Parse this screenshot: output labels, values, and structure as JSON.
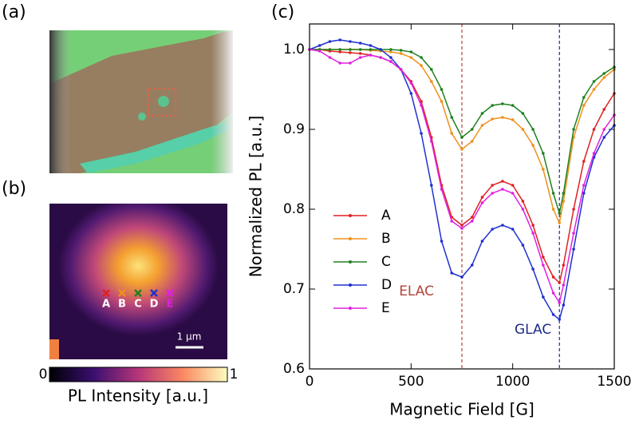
{
  "panels": [
    "(a)",
    "(b)",
    "(c)"
  ],
  "image_b": {
    "points": [
      "A",
      "B",
      "C",
      "D",
      "E"
    ],
    "point_colors": [
      "#e02020",
      "#f0901a",
      "#208020",
      "#2030d0",
      "#e020e0"
    ],
    "scale_bar": "1 μm",
    "colorbar": {
      "ticks": [
        0,
        1
      ],
      "label": "PL Intensity [a.u.]"
    }
  },
  "chart_data": {
    "type": "line",
    "xlabel": "Magnetic Field [G]",
    "ylabel": "Normalized PL [a.u.]",
    "xlim": [
      0,
      1500
    ],
    "ylim": [
      0.6,
      1.032
    ],
    "xticks": [
      0,
      500,
      1000,
      1500
    ],
    "yticks": [
      0.6,
      0.7,
      0.8,
      0.9,
      {
        "value": 1.0,
        "label": "1.0"
      }
    ],
    "legend": "center left",
    "x": [
      0,
      50,
      100,
      150,
      200,
      250,
      300,
      350,
      400,
      450,
      500,
      550,
      600,
      650,
      700,
      750,
      800,
      850,
      900,
      950,
      1000,
      1050,
      1100,
      1150,
      1200,
      1230,
      1250,
      1300,
      1350,
      1400,
      1450,
      1500
    ],
    "series": [
      {
        "name": "A",
        "color": "#e02020",
        "values": [
          1.0,
          1.0,
          0.998,
          0.997,
          0.996,
          0.995,
          0.993,
          0.99,
          0.985,
          0.975,
          0.96,
          0.935,
          0.89,
          0.83,
          0.79,
          0.78,
          0.79,
          0.815,
          0.83,
          0.835,
          0.83,
          0.81,
          0.78,
          0.74,
          0.715,
          0.708,
          0.73,
          0.8,
          0.86,
          0.9,
          0.925,
          0.945
        ]
      },
      {
        "name": "B",
        "color": "#f0901a",
        "values": [
          1.0,
          1.0,
          1.0,
          1.0,
          1.0,
          1.0,
          0.999,
          0.998,
          0.997,
          0.995,
          0.99,
          0.98,
          0.96,
          0.935,
          0.895,
          0.875,
          0.885,
          0.905,
          0.913,
          0.915,
          0.912,
          0.9,
          0.88,
          0.85,
          0.8,
          0.783,
          0.81,
          0.89,
          0.93,
          0.95,
          0.965,
          0.975
        ]
      },
      {
        "name": "C",
        "color": "#208020",
        "values": [
          1.0,
          1.0,
          1.0,
          1.0,
          1.0,
          1.0,
          1.0,
          1.0,
          1.0,
          0.999,
          0.997,
          0.99,
          0.975,
          0.95,
          0.915,
          0.89,
          0.9,
          0.92,
          0.93,
          0.932,
          0.93,
          0.92,
          0.9,
          0.87,
          0.82,
          0.795,
          0.82,
          0.9,
          0.94,
          0.96,
          0.97,
          0.978
        ]
      },
      {
        "name": "D",
        "color": "#2030d0",
        "values": [
          1.0,
          1.005,
          1.01,
          1.012,
          1.01,
          1.008,
          1.005,
          1.0,
          0.99,
          0.975,
          0.945,
          0.895,
          0.83,
          0.76,
          0.72,
          0.715,
          0.73,
          0.76,
          0.775,
          0.78,
          0.775,
          0.755,
          0.725,
          0.69,
          0.668,
          0.662,
          0.68,
          0.75,
          0.82,
          0.865,
          0.89,
          0.905
        ]
      },
      {
        "name": "E",
        "color": "#e020e0",
        "values": [
          1.0,
          0.998,
          0.99,
          0.983,
          0.983,
          0.99,
          0.993,
          0.99,
          0.985,
          0.975,
          0.958,
          0.93,
          0.885,
          0.825,
          0.785,
          0.776,
          0.785,
          0.808,
          0.82,
          0.825,
          0.82,
          0.8,
          0.77,
          0.73,
          0.695,
          0.683,
          0.705,
          0.77,
          0.83,
          0.87,
          0.9,
          0.918
        ]
      }
    ],
    "vlines": [
      {
        "x": 750,
        "color": "#b5433a",
        "label": "ELAC"
      },
      {
        "x": 1230,
        "color": "#1f2a8a",
        "label": "GLAC"
      }
    ]
  }
}
